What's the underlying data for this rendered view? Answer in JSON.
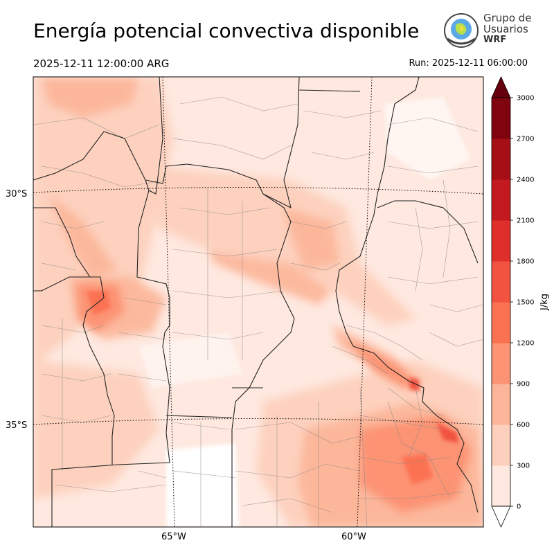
{
  "header": {
    "title": "Energía potencial convectiva disponible",
    "valid_time": "2025-12-11 12:00:00 ARG",
    "run_time": "Run: 2025-12-11 06:00:00"
  },
  "logo": {
    "line1": "Grupo de",
    "line2": "Usuarios",
    "line3": "WRF"
  },
  "axes": {
    "lat_labels": [
      "30°S",
      "35°S"
    ],
    "lon_labels": [
      "65°W",
      "60°W"
    ]
  },
  "colorbar": {
    "unit": "J/kg",
    "ticks": [
      "0",
      "300",
      "600",
      "900",
      "1200",
      "1500",
      "1800",
      "2100",
      "2400",
      "2700",
      "3000"
    ],
    "colors": [
      "#fee8df",
      "#fdd0bd",
      "#fcb598",
      "#fc9373",
      "#fb7252",
      "#f15340",
      "#df2f2a",
      "#c31a20",
      "#a50f15",
      "#7f0410",
      "#67000d"
    ]
  }
}
